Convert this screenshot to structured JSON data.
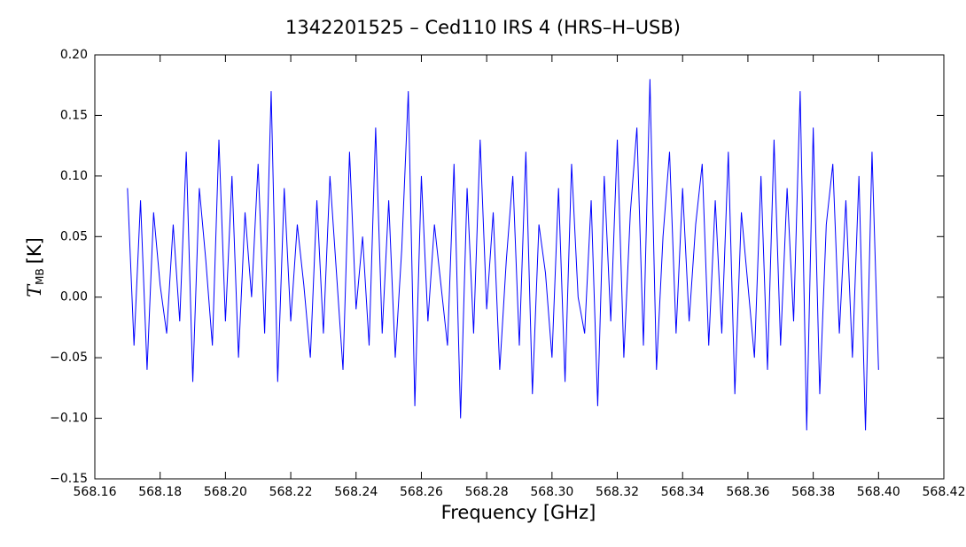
{
  "chart_data": {
    "type": "line",
    "title": "1342201525 – Ced110 IRS 4 (HRS–H–USB)",
    "xlabel": "Frequency [GHz]",
    "ylabel": {
      "symbol": "T",
      "subscript": "MB",
      "unit": "[K]"
    },
    "color": "#0000ff",
    "xlim": [
      568.16,
      568.42
    ],
    "ylim": [
      -0.15,
      0.2
    ],
    "xticks": [
      568.16,
      568.18,
      {
        "value": 568.2,
        "label": "568.20"
      },
      568.22,
      568.24,
      568.26,
      568.28,
      {
        "value": 568.3,
        "label": "568.30"
      },
      568.32,
      568.34,
      568.36,
      568.38,
      {
        "value": 568.4,
        "label": "568.40"
      },
      568.42
    ],
    "yticks": [
      {
        "value": -0.15,
        "label": "−0.15"
      },
      {
        "value": -0.1,
        "label": "−0.10"
      },
      {
        "value": -0.05,
        "label": "−0.05"
      },
      {
        "value": 0,
        "label": "0.00"
      },
      {
        "value": 0.05,
        "label": "0.05"
      },
      {
        "value": 0.1,
        "label": "0.10"
      },
      {
        "value": 0.15,
        "label": "0.15"
      },
      {
        "value": 0.2,
        "label": "0.20"
      }
    ],
    "x": [
      568.17,
      568.172,
      568.174,
      568.176,
      568.178,
      568.18,
      568.182,
      568.184,
      568.186,
      568.188,
      568.19,
      568.192,
      568.194,
      568.196,
      568.198,
      568.2,
      568.202,
      568.204,
      568.206,
      568.208,
      568.21,
      568.212,
      568.214,
      568.216,
      568.218,
      568.22,
      568.222,
      568.224,
      568.226,
      568.228,
      568.23,
      568.232,
      568.234,
      568.236,
      568.238,
      568.24,
      568.242,
      568.244,
      568.246,
      568.248,
      568.25,
      568.252,
      568.254,
      568.256,
      568.258,
      568.26,
      568.262,
      568.264,
      568.266,
      568.268,
      568.27,
      568.272,
      568.274,
      568.276,
      568.278,
      568.28,
      568.282,
      568.284,
      568.286,
      568.288,
      568.29,
      568.292,
      568.294,
      568.296,
      568.298,
      568.3,
      568.302,
      568.304,
      568.306,
      568.308,
      568.31,
      568.312,
      568.314,
      568.316,
      568.318,
      568.32,
      568.322,
      568.324,
      568.326,
      568.328,
      568.33,
      568.332,
      568.334,
      568.336,
      568.338,
      568.34,
      568.342,
      568.344,
      568.346,
      568.348,
      568.35,
      568.352,
      568.354,
      568.356,
      568.358,
      568.36,
      568.362,
      568.364,
      568.366,
      568.368,
      568.37,
      568.372,
      568.374,
      568.376,
      568.378,
      568.38,
      568.382,
      568.384,
      568.386,
      568.388,
      568.39,
      568.392,
      568.394,
      568.396,
      568.398,
      568.4
    ],
    "values": [
      0.09,
      -0.04,
      0.08,
      -0.06,
      0.07,
      0.01,
      -0.03,
      0.06,
      -0.02,
      0.12,
      -0.07,
      0.09,
      0.03,
      -0.04,
      0.13,
      -0.02,
      0.1,
      -0.05,
      0.07,
      0,
      0.11,
      -0.03,
      0.17,
      -0.07,
      0.09,
      -0.02,
      0.06,
      0.01,
      -0.05,
      0.08,
      -0.03,
      0.1,
      0.02,
      -0.06,
      0.12,
      -0.01,
      0.05,
      -0.04,
      0.14,
      -0.03,
      0.08,
      -0.05,
      0.04,
      0.17,
      -0.09,
      0.1,
      -0.02,
      0.06,
      0.01,
      -0.04,
      0.11,
      -0.1,
      0.09,
      -0.03,
      0.13,
      -0.01,
      0.07,
      -0.06,
      0.03,
      0.1,
      -0.04,
      0.12,
      -0.08,
      0.06,
      0.02,
      -0.05,
      0.09,
      -0.07,
      0.11,
      0,
      -0.03,
      0.08,
      -0.09,
      0.1,
      -0.02,
      0.13,
      -0.05,
      0.07,
      0.14,
      -0.04,
      0.18,
      -0.06,
      0.05,
      0.12,
      -0.03,
      0.09,
      -0.02,
      0.06,
      0.11,
      -0.04,
      0.08,
      -0.03,
      0.12,
      -0.08,
      0.07,
      0.01,
      -0.05,
      0.1,
      -0.06,
      0.13,
      -0.04,
      0.09,
      -0.02,
      0.17,
      -0.11,
      0.14,
      -0.08,
      0.06,
      0.11,
      -0.03,
      0.08,
      -0.05,
      0.1,
      -0.11,
      0.12,
      -0.06
    ]
  }
}
